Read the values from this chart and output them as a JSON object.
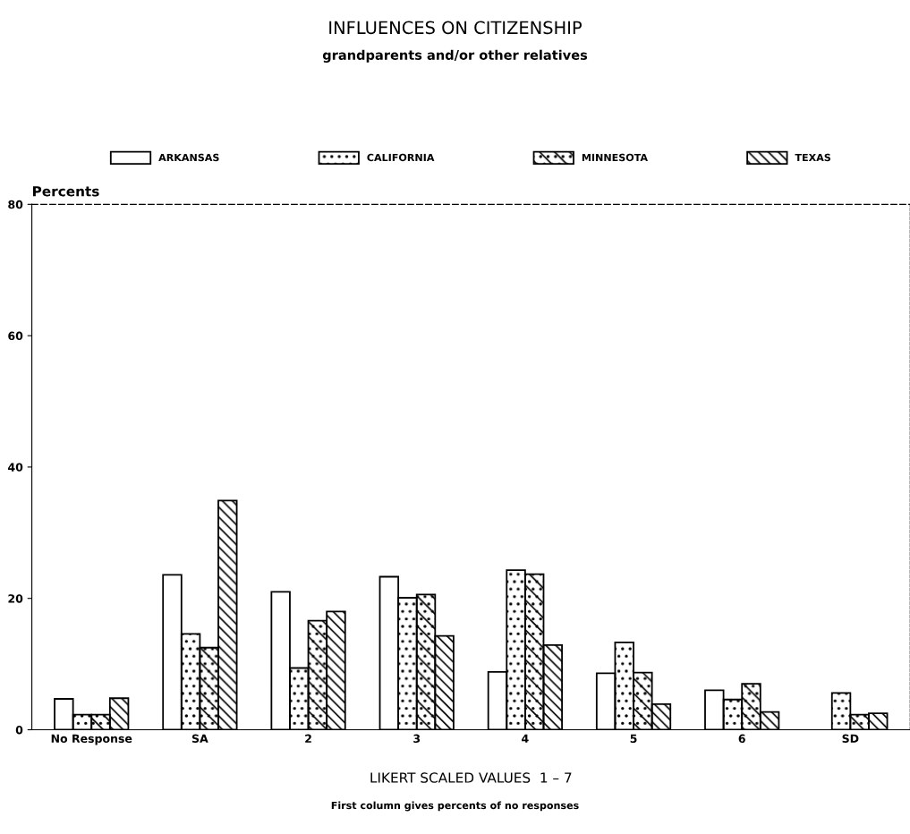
{
  "chart_data": {
    "type": "bar",
    "title": "INFLUENCES ON CITIZENSHIP",
    "subtitle": "grandparents and/or other relatives",
    "ylabel": "Percents",
    "xlabel": "LIKERT SCALED VALUES  1 – 7",
    "annotations": [
      "First column gives percents of no responses"
    ],
    "categories": [
      "No Response",
      "SA",
      "2",
      "3",
      "4",
      "5",
      "6",
      "SD"
    ],
    "series": [
      {
        "name": "ARKANSAS",
        "color": "#ffffff",
        "values": [
          4.7,
          23.6,
          21.0,
          23.3,
          8.8,
          8.6,
          6.0,
          null
        ]
      },
      {
        "name": "CALIFORNIA",
        "color": "#000000",
        "values": [
          2.3,
          14.6,
          9.4,
          20.1,
          24.3,
          13.3,
          4.6,
          5.6
        ]
      },
      {
        "name": "MINNESOTA",
        "color": "#000000",
        "values": [
          2.3,
          12.5,
          16.6,
          20.6,
          23.7,
          8.7,
          7.0,
          2.3
        ]
      },
      {
        "name": "TEXAS",
        "color": "#000000",
        "values": [
          4.8,
          34.9,
          18.0,
          14.3,
          12.9,
          3.9,
          2.7,
          2.5
        ]
      }
    ],
    "ylim": [
      0,
      80
    ],
    "yticks": [
      0,
      20,
      40,
      60,
      80
    ],
    "grid": false,
    "legend": "top"
  }
}
